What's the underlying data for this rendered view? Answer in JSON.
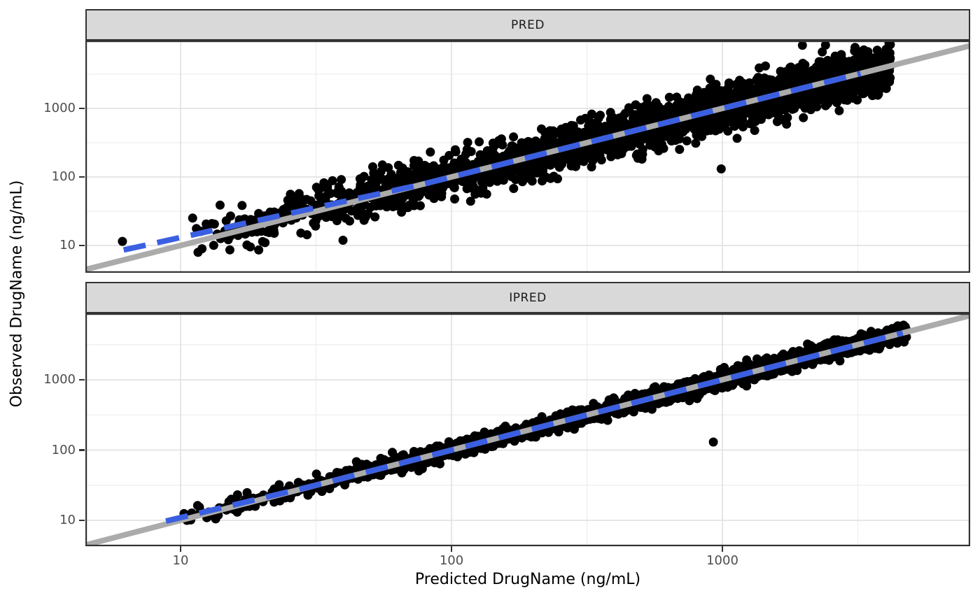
{
  "figure": {
    "x_axis_title": "Predicted DrugName (ng/mL)",
    "y_axis_title": "Observed DrugName (ng/mL)"
  },
  "colors": {
    "background": "#FFFFFF",
    "strip_background": "#D9D9D9",
    "panel_border": "#333333",
    "grid_major": "#E3E3E3",
    "grid_minor": "#F0F0F0",
    "tick_label": "#4D4D4D",
    "point": "#000000",
    "identity_line": "#ABABAB",
    "smooth_line": "#3B5FE1"
  },
  "chart_data": [
    {
      "type": "scatter",
      "facet": "PRED",
      "x_scale": "log10",
      "y_scale": "log10",
      "x_ticks": [
        10,
        100,
        1000
      ],
      "y_ticks": [
        10,
        100,
        1000
      ],
      "x_tick_labels": [
        "10",
        "100",
        "1000"
      ],
      "y_tick_labels": [
        "1000",
        "100",
        "10"
      ],
      "x_range": [
        4.5,
        8200
      ],
      "y_range": [
        4.0,
        9800
      ],
      "n_points": 2600,
      "point_cloud": {
        "seed": 42,
        "log10x_min": 0.95,
        "log10x_max": 3.62,
        "residual_sd_log10": 0.16,
        "low_end_bias": {
          "threshold_log10x": 1.9,
          "slope": 0.13
        }
      },
      "extra_points": [
        [
          6.1,
          11.5
        ],
        [
          990,
          131
        ]
      ],
      "identity_line": {
        "style": "solid",
        "color_key": "identity_line"
      },
      "smooth_line": {
        "style": "dashed",
        "color_key": "smooth_line",
        "log10x_start": 0.79,
        "log10x_end": 3.51
      }
    },
    {
      "type": "scatter",
      "facet": "IPRED",
      "x_scale": "log10",
      "y_scale": "log10",
      "x_ticks": [
        10,
        100,
        1000
      ],
      "y_ticks": [
        10,
        100,
        1000
      ],
      "x_tick_labels": [
        "10",
        "100",
        "1000"
      ],
      "y_tick_labels": [
        "1000",
        "100",
        "10"
      ],
      "x_range": [
        4.5,
        8200
      ],
      "y_range": [
        4.3,
        8800
      ],
      "n_points": 2600,
      "point_cloud": {
        "seed": 7,
        "log10x_min": 0.95,
        "log10x_max": 3.68,
        "residual_sd_log10": 0.055,
        "low_end_bias": {
          "threshold_log10x": 1.5,
          "slope": 0.08
        }
      },
      "extra_points": [
        [
          926,
          130
        ]
      ],
      "identity_line": {
        "style": "solid",
        "color_key": "identity_line"
      },
      "smooth_line": {
        "style": "dashed",
        "color_key": "smooth_line",
        "log10x_start": 0.946,
        "log10x_end": 3.667
      }
    }
  ]
}
